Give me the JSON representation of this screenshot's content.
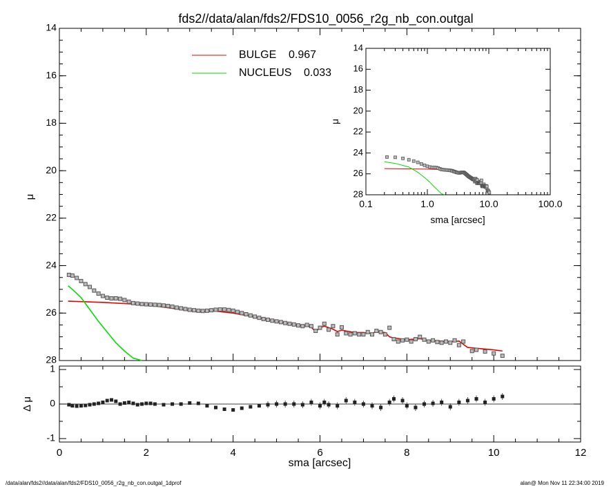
{
  "chart_data": {
    "type": "scatter",
    "title": "fds2//data/alan/fds2/FDS10_0056_r2g_nb_con.outgal",
    "footer_left": "/data/alan/fds2//data/alan/fds2/FDS10_0056_r2g_nb_con.outgal_1dprof",
    "footer_right": "alan@  Mon Nov 11 22:34:00 2019",
    "colors": {
      "bulge": "#e60000",
      "nucleus": "#00dd00",
      "data": "#555555",
      "axis": "#000000"
    },
    "main": {
      "ylabel": "μ",
      "xlim": [
        0,
        12
      ],
      "ylim": [
        14,
        28
      ],
      "y_reversed": true,
      "yticks": [
        "14",
        "16",
        "18",
        "20",
        "22",
        "24",
        "26",
        "28"
      ],
      "legend": [
        {
          "label": "BULGE",
          "value": "0.967",
          "color": "#e60000"
        },
        {
          "label": "NUCLEUS",
          "value": "0.033",
          "color": "#00dd00"
        }
      ],
      "legend_position": "top-center",
      "data_points": [
        [
          0.22,
          24.39
        ],
        [
          0.3,
          24.42
        ],
        [
          0.4,
          24.52
        ],
        [
          0.5,
          24.65
        ],
        [
          0.6,
          24.78
        ],
        [
          0.7,
          24.9
        ],
        [
          0.8,
          25.05
        ],
        [
          0.9,
          25.18
        ],
        [
          1.0,
          25.28
        ],
        [
          1.1,
          25.35
        ],
        [
          1.2,
          25.38
        ],
        [
          1.3,
          25.38
        ],
        [
          1.4,
          25.4
        ],
        [
          1.5,
          25.45
        ],
        [
          1.6,
          25.52
        ],
        [
          1.7,
          25.58
        ],
        [
          1.8,
          25.6
        ],
        [
          1.9,
          25.62
        ],
        [
          2.0,
          25.63
        ],
        [
          2.1,
          25.64
        ],
        [
          2.2,
          25.65
        ],
        [
          2.3,
          25.66
        ],
        [
          2.4,
          25.68
        ],
        [
          2.5,
          25.7
        ],
        [
          2.6,
          25.73
        ],
        [
          2.7,
          25.77
        ],
        [
          2.8,
          25.8
        ],
        [
          2.9,
          25.83
        ],
        [
          3.0,
          25.86
        ],
        [
          3.1,
          25.88
        ],
        [
          3.2,
          25.9
        ],
        [
          3.3,
          25.91
        ],
        [
          3.4,
          25.9
        ],
        [
          3.5,
          25.88
        ],
        [
          3.6,
          25.86
        ],
        [
          3.7,
          25.85
        ],
        [
          3.8,
          25.85
        ],
        [
          3.9,
          25.87
        ],
        [
          4.0,
          25.9
        ],
        [
          4.1,
          25.95
        ],
        [
          4.2,
          26.0
        ],
        [
          4.3,
          26.05
        ],
        [
          4.4,
          26.1
        ],
        [
          4.5,
          26.15
        ],
        [
          4.6,
          26.2
        ],
        [
          4.7,
          26.25
        ],
        [
          4.8,
          26.28
        ],
        [
          4.9,
          26.32
        ],
        [
          5.0,
          26.35
        ],
        [
          5.1,
          26.38
        ],
        [
          5.2,
          26.42
        ],
        [
          5.3,
          26.45
        ],
        [
          5.4,
          26.48
        ],
        [
          5.5,
          26.52
        ],
        [
          5.6,
          26.55
        ],
        [
          5.7,
          26.5
        ],
        [
          5.8,
          26.55
        ],
        [
          5.9,
          26.75
        ],
        [
          6.0,
          26.62
        ],
        [
          6.1,
          26.45
        ],
        [
          6.2,
          26.7
        ],
        [
          6.3,
          26.55
        ],
        [
          6.4,
          26.9
        ],
        [
          6.5,
          26.6
        ],
        [
          6.6,
          26.85
        ],
        [
          6.7,
          26.9
        ],
        [
          6.8,
          26.85
        ],
        [
          6.9,
          26.9
        ],
        [
          7.0,
          26.9
        ],
        [
          7.1,
          26.8
        ],
        [
          7.2,
          26.9
        ],
        [
          7.3,
          26.75
        ],
        [
          7.4,
          26.8
        ],
        [
          7.5,
          26.9
        ],
        [
          7.6,
          26.62
        ],
        [
          7.7,
          27.1
        ],
        [
          7.8,
          27.2
        ],
        [
          7.9,
          27.15
        ],
        [
          8.0,
          27.12
        ],
        [
          8.1,
          27.2
        ],
        [
          8.2,
          27.1
        ],
        [
          8.3,
          27.0
        ],
        [
          8.4,
          27.12
        ],
        [
          8.5,
          27.2
        ],
        [
          8.6,
          27.15
        ],
        [
          8.7,
          27.22
        ],
        [
          8.8,
          27.25
        ],
        [
          8.9,
          27.2
        ],
        [
          9.0,
          27.25
        ],
        [
          9.1,
          27.15
        ],
        [
          9.2,
          27.35
        ],
        [
          9.3,
          27.2
        ],
        [
          9.5,
          27.6
        ],
        [
          9.6,
          27.55
        ],
        [
          9.8,
          27.62
        ],
        [
          10.0,
          27.7
        ],
        [
          10.2,
          27.8
        ]
      ],
      "bulge_model": [
        [
          0.2,
          25.5
        ],
        [
          1.0,
          25.55
        ],
        [
          2.0,
          25.65
        ],
        [
          3.0,
          25.9
        ],
        [
          3.3,
          25.95
        ],
        [
          3.5,
          25.9
        ],
        [
          4.0,
          26.0
        ],
        [
          4.5,
          26.17
        ],
        [
          5.0,
          26.35
        ],
        [
          5.5,
          26.52
        ],
        [
          5.7,
          26.55
        ],
        [
          5.8,
          26.6
        ],
        [
          5.9,
          26.78
        ],
        [
          6.0,
          26.62
        ],
        [
          6.1,
          26.55
        ],
        [
          6.3,
          26.68
        ],
        [
          6.4,
          26.78
        ],
        [
          6.5,
          26.72
        ],
        [
          6.8,
          26.82
        ],
        [
          7.0,
          26.82
        ],
        [
          7.2,
          26.85
        ],
        [
          7.3,
          26.78
        ],
        [
          7.5,
          26.82
        ],
        [
          7.6,
          27.0
        ],
        [
          7.7,
          27.05
        ],
        [
          8.0,
          27.12
        ],
        [
          8.3,
          27.08
        ],
        [
          8.5,
          27.15
        ],
        [
          9.0,
          27.2
        ],
        [
          9.2,
          27.18
        ],
        [
          9.4,
          27.45
        ],
        [
          9.7,
          27.5
        ],
        [
          10.0,
          27.55
        ],
        [
          10.2,
          27.6
        ]
      ],
      "nucleus_model": [
        [
          0.2,
          24.85
        ],
        [
          0.3,
          25.0
        ],
        [
          0.5,
          25.35
        ],
        [
          0.7,
          25.85
        ],
        [
          0.9,
          26.35
        ],
        [
          1.1,
          26.8
        ],
        [
          1.3,
          27.25
        ],
        [
          1.5,
          27.6
        ],
        [
          1.7,
          27.9
        ],
        [
          1.9,
          28.0
        ]
      ]
    },
    "residuals": {
      "ylabel": "Δ μ",
      "xlabel": "sma [arcsec]",
      "xlim": [
        0,
        12
      ],
      "ylim": [
        -1.1,
        1.1
      ],
      "yticks": [
        "-1",
        "0",
        "1"
      ],
      "xticks": [
        "0",
        "2",
        "4",
        "6",
        "8",
        "10",
        "12"
      ],
      "points": [
        [
          0.22,
          -0.02
        ],
        [
          0.3,
          -0.05
        ],
        [
          0.4,
          -0.06
        ],
        [
          0.5,
          -0.05
        ],
        [
          0.6,
          -0.04
        ],
        [
          0.7,
          -0.02
        ],
        [
          0.8,
          0.0
        ],
        [
          0.9,
          0.02
        ],
        [
          1.0,
          0.05
        ],
        [
          1.1,
          0.1
        ],
        [
          1.2,
          0.12
        ],
        [
          1.3,
          0.08
        ],
        [
          1.4,
          0.0
        ],
        [
          1.5,
          0.03
        ],
        [
          1.6,
          0.05
        ],
        [
          1.7,
          0.02
        ],
        [
          1.8,
          -0.02
        ],
        [
          1.9,
          0.0
        ],
        [
          2.0,
          0.02
        ],
        [
          2.1,
          0.02
        ],
        [
          2.2,
          0.0
        ],
        [
          2.4,
          -0.02
        ],
        [
          2.6,
          0.0
        ],
        [
          2.8,
          0.0
        ],
        [
          3.0,
          0.03
        ],
        [
          3.2,
          0.02
        ],
        [
          3.4,
          -0.05
        ],
        [
          3.6,
          -0.1
        ],
        [
          3.8,
          -0.15
        ],
        [
          4.0,
          -0.17
        ],
        [
          4.2,
          -0.12
        ],
        [
          4.4,
          -0.08
        ],
        [
          4.6,
          -0.05
        ],
        [
          4.8,
          -0.02
        ],
        [
          5.0,
          0.0
        ],
        [
          5.2,
          0.0
        ],
        [
          5.4,
          0.0
        ],
        [
          5.6,
          -0.02
        ],
        [
          5.8,
          0.05
        ],
        [
          6.0,
          -0.05
        ],
        [
          6.1,
          0.05
        ],
        [
          6.2,
          -0.02
        ],
        [
          6.4,
          -0.05
        ],
        [
          6.6,
          0.1
        ],
        [
          6.8,
          0.05
        ],
        [
          7.0,
          0.0
        ],
        [
          7.2,
          -0.05
        ],
        [
          7.4,
          -0.1
        ],
        [
          7.6,
          0.05
        ],
        [
          7.7,
          0.15
        ],
        [
          7.9,
          0.1
        ],
        [
          8.0,
          -0.05
        ],
        [
          8.2,
          -0.1
        ],
        [
          8.4,
          0.0
        ],
        [
          8.6,
          0.02
        ],
        [
          8.8,
          0.05
        ],
        [
          9.0,
          -0.08
        ],
        [
          9.2,
          0.05
        ],
        [
          9.4,
          0.1
        ],
        [
          9.6,
          0.15
        ],
        [
          9.8,
          0.05
        ],
        [
          10.0,
          0.15
        ],
        [
          10.2,
          0.22
        ]
      ]
    },
    "inset": {
      "ylabel": "μ",
      "xlabel": "sma [arcsec]",
      "x_scale": "log",
      "xlim": [
        0.1,
        100.0
      ],
      "ylim": [
        14,
        28
      ],
      "y_reversed": true,
      "xticks": [
        "0.1",
        "1.0",
        "10.0",
        "100.0"
      ],
      "yticks": [
        "14",
        "16",
        "18",
        "20",
        "22",
        "24",
        "26",
        "28"
      ]
    }
  }
}
